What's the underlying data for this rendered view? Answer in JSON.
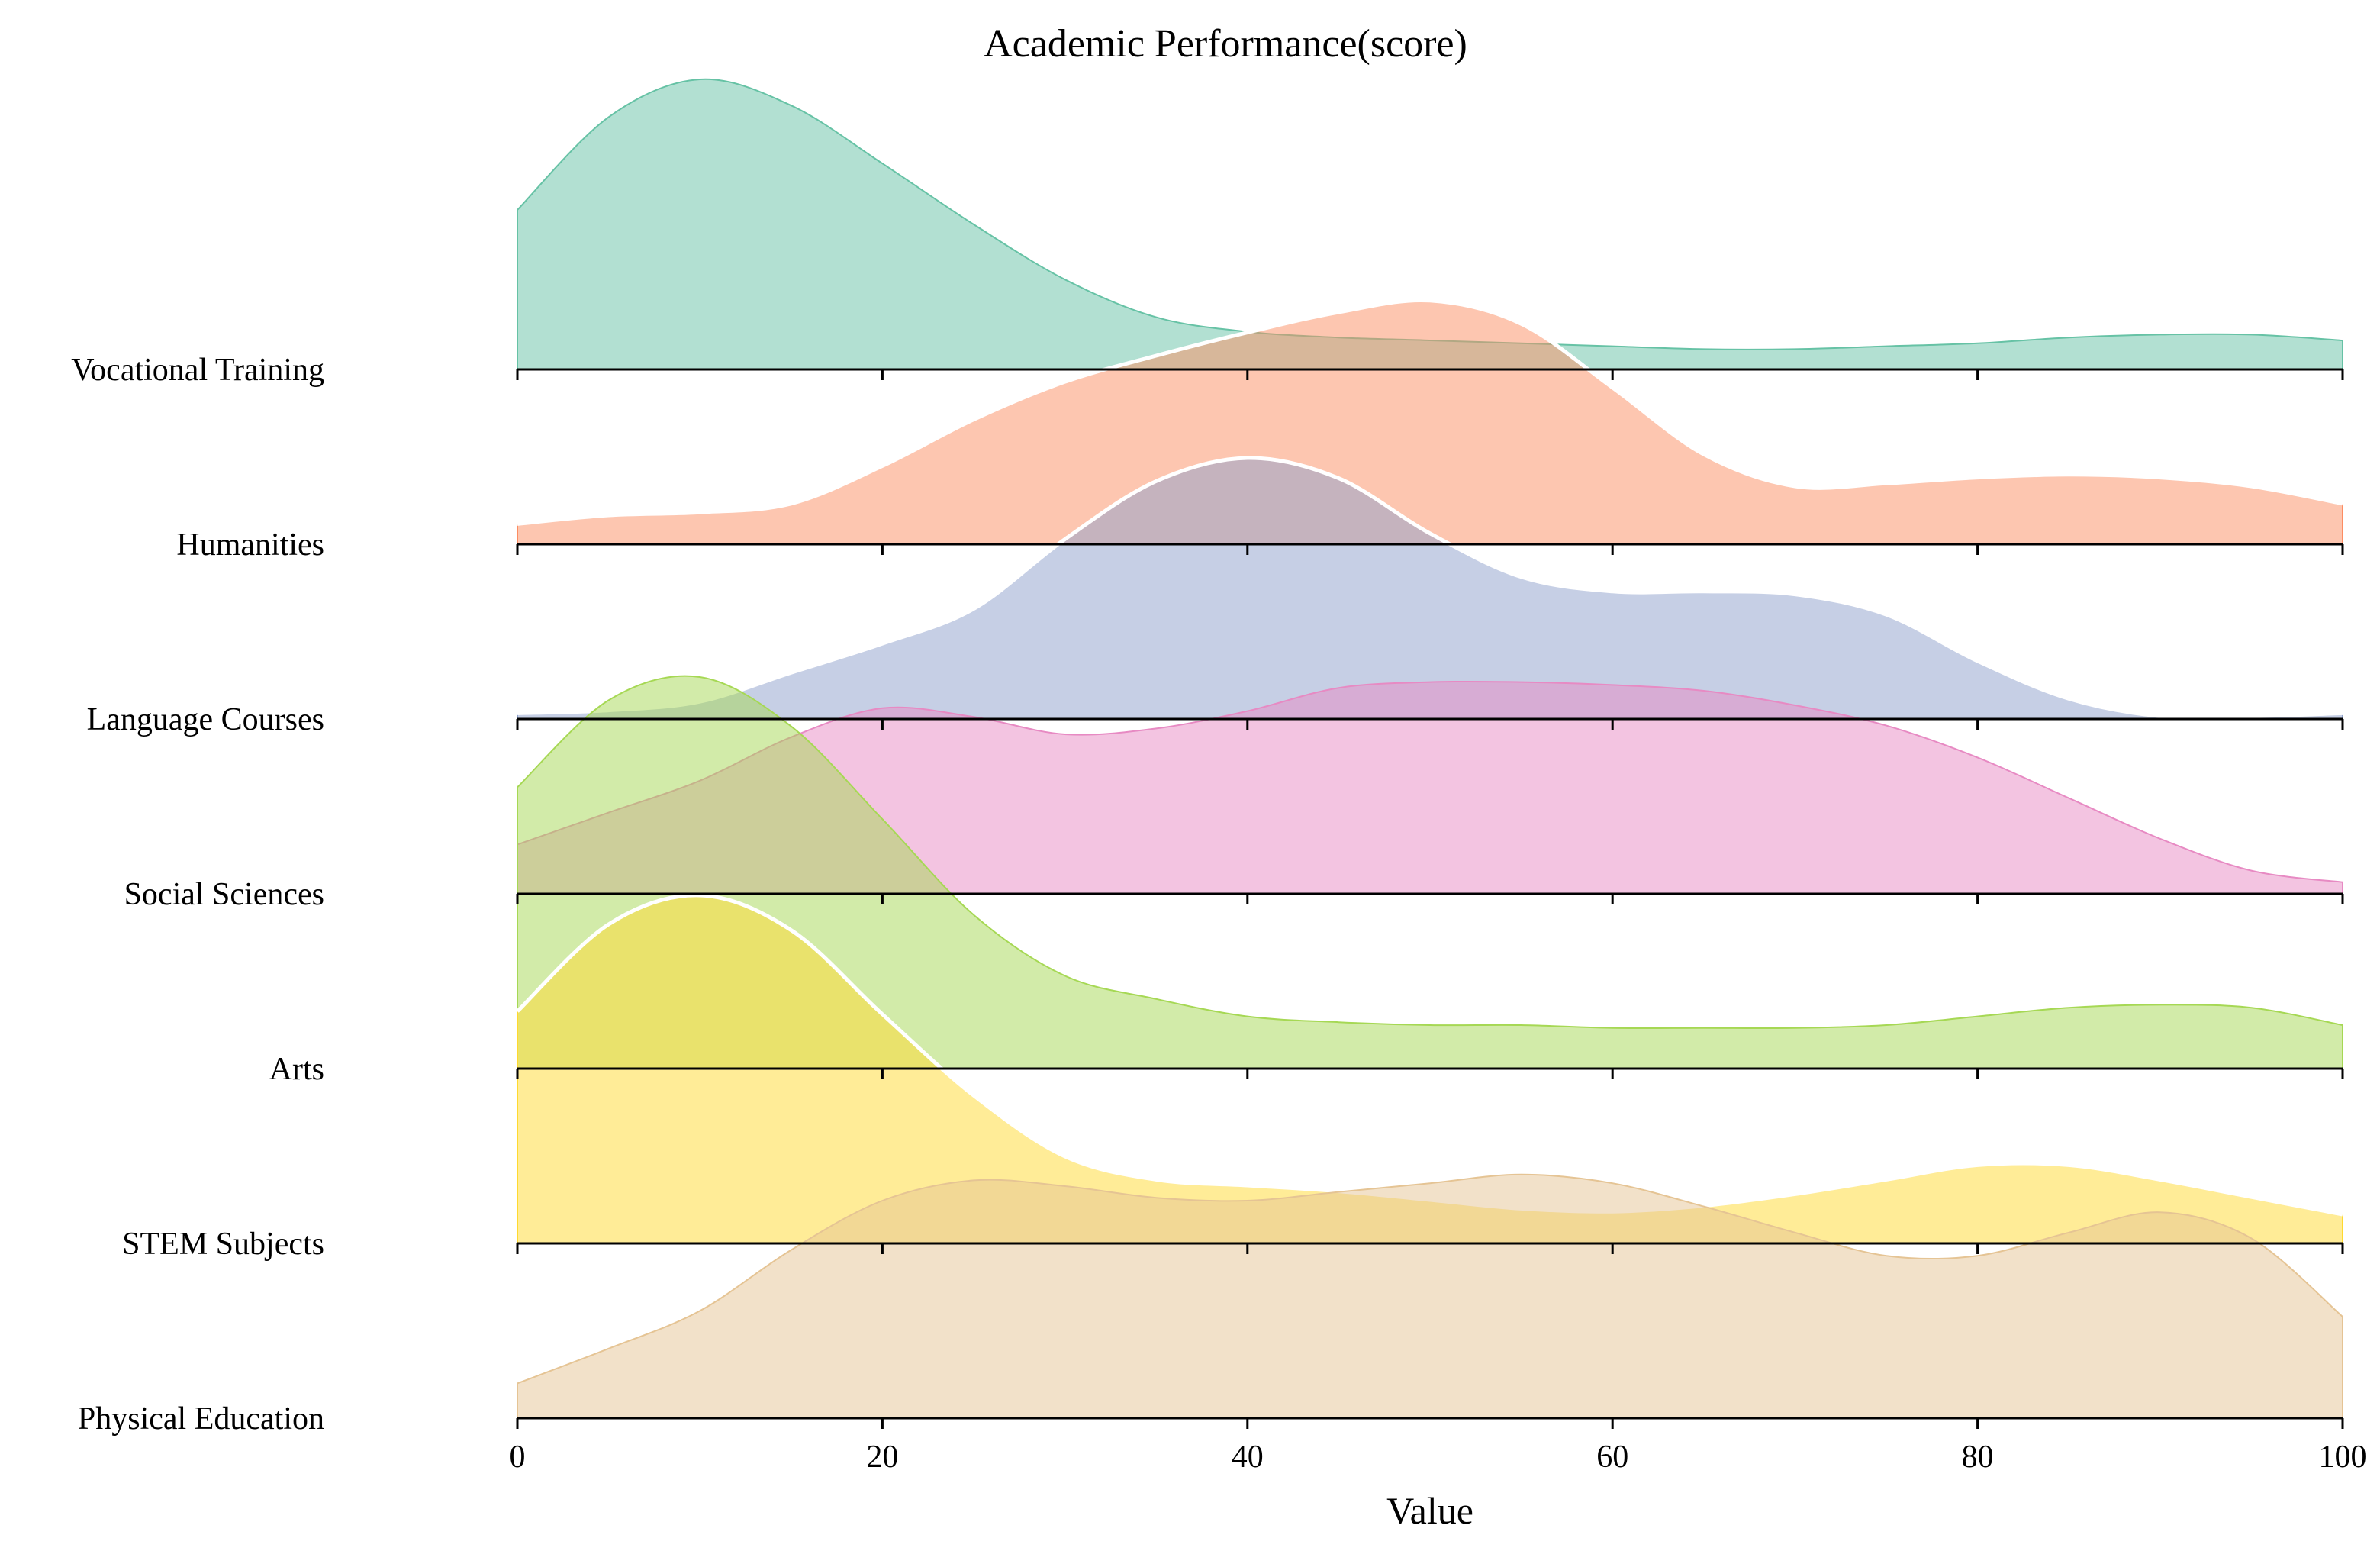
{
  "chart_data": {
    "type": "area",
    "title": "Academic Performance(score)",
    "xlabel": "Value",
    "ylabel": "",
    "xlim": [
      0,
      100
    ],
    "x_ticks": [
      "0",
      "20",
      "40",
      "60",
      "80",
      "100"
    ],
    "x_tick_values": [
      0,
      20,
      40,
      60,
      80,
      100
    ],
    "grid": false,
    "legend": "none",
    "x": [
      0,
      5,
      10,
      15,
      20,
      25,
      30,
      35,
      40,
      45,
      50,
      55,
      60,
      65,
      70,
      75,
      80,
      85,
      90,
      95,
      100
    ],
    "series": [
      {
        "name": "Vocational Training",
        "color": "#66c2a5",
        "highlight": false,
        "values": [
          0.55,
          0.87,
          1.0,
          0.91,
          0.71,
          0.5,
          0.31,
          0.18,
          0.13,
          0.11,
          0.1,
          0.09,
          0.08,
          0.07,
          0.07,
          0.08,
          0.09,
          0.11,
          0.12,
          0.12,
          0.1
        ]
      },
      {
        "name": "Humanities",
        "color": "#fc8d62",
        "highlight": true,
        "values": [
          0.07,
          0.1,
          0.11,
          0.14,
          0.27,
          0.43,
          0.56,
          0.65,
          0.73,
          0.8,
          0.84,
          0.76,
          0.54,
          0.31,
          0.2,
          0.21,
          0.23,
          0.24,
          0.23,
          0.2,
          0.14
        ]
      },
      {
        "name": "Language Courses",
        "color": "#8da0cb",
        "highlight": true,
        "values": [
          0.02,
          0.03,
          0.06,
          0.16,
          0.26,
          0.38,
          0.62,
          0.82,
          0.9,
          0.83,
          0.64,
          0.49,
          0.44,
          0.44,
          0.43,
          0.36,
          0.2,
          0.07,
          0.01,
          0.01,
          0.02
        ]
      },
      {
        "name": "Social Sciences",
        "color": "#e78ac3",
        "highlight": false,
        "values": [
          0.17,
          0.28,
          0.39,
          0.54,
          0.64,
          0.61,
          0.55,
          0.57,
          0.63,
          0.71,
          0.73,
          0.73,
          0.72,
          0.7,
          0.65,
          0.58,
          0.47,
          0.33,
          0.19,
          0.08,
          0.04
        ]
      },
      {
        "name": "Arts",
        "color": "#a6d854",
        "highlight": false,
        "values": [
          0.97,
          1.27,
          1.35,
          1.18,
          0.86,
          0.53,
          0.32,
          0.24,
          0.18,
          0.16,
          0.15,
          0.15,
          0.14,
          0.14,
          0.14,
          0.15,
          0.18,
          0.21,
          0.22,
          0.21,
          0.15
        ]
      },
      {
        "name": "STEM Subjects",
        "color": "#ffd92f",
        "highlight": true,
        "values": [
          0.8,
          1.1,
          1.2,
          1.08,
          0.79,
          0.51,
          0.3,
          0.22,
          0.2,
          0.18,
          0.15,
          0.12,
          0.11,
          0.13,
          0.17,
          0.22,
          0.27,
          0.27,
          0.22,
          0.16,
          0.1
        ]
      },
      {
        "name": "Physical Education",
        "color": "#e5c494",
        "highlight": false,
        "values": [
          0.12,
          0.24,
          0.37,
          0.58,
          0.75,
          0.82,
          0.8,
          0.76,
          0.75,
          0.78,
          0.81,
          0.84,
          0.81,
          0.73,
          0.64,
          0.56,
          0.56,
          0.64,
          0.71,
          0.62,
          0.35
        ]
      }
    ]
  }
}
